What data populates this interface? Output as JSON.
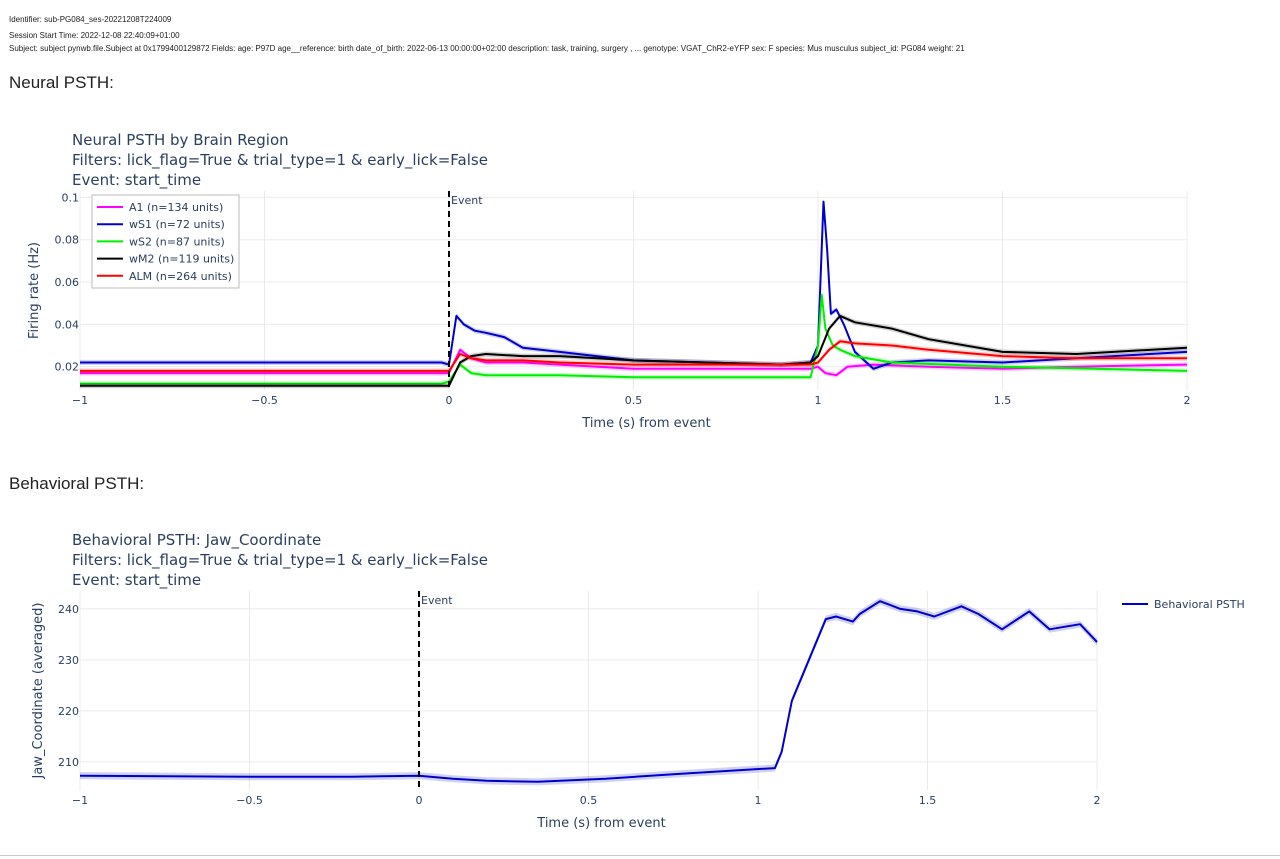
{
  "meta": {
    "identifier": "Identifier: sub-PG084_ses-20221208T224009",
    "session_start": "Session Start Time: 2022-12-08 22:40:09+01:00",
    "subject": "Subject: subject pynwb.file.Subject at 0x1799400129872 Fields: age: P97D age__reference: birth date_of_birth: 2022-06-13 00:00:00+02:00 description: task, training, surgery , ... genotype: VGAT_ChR2-eYFP sex: F species: Mus musculus subject_id: PG084 weight: 21"
  },
  "sections": {
    "neural_heading": "Neural PSTH:",
    "behavioral_heading": "Behavioral PSTH:"
  },
  "chart_data": [
    {
      "type": "line",
      "title": [
        "Neural PSTH by Brain Region",
        "Filters: lick_flag=True & trial_type=1 & early_lick=False",
        "Event: start_time"
      ],
      "xlabel": "Time (s) from event",
      "ylabel": "Firing rate (Hz)",
      "xlim": [
        -1,
        2
      ],
      "ylim": [
        0.009,
        0.103
      ],
      "xticks": [
        -1,
        -0.5,
        0,
        0.5,
        1,
        1.5,
        2
      ],
      "xtick_labels": [
        "−1",
        "−0.5",
        "0",
        "0.5",
        "1",
        "1.5",
        "2"
      ],
      "yticks": [
        0.02,
        0.04,
        0.06,
        0.08,
        0.1
      ],
      "ytick_labels": [
        "0.02",
        "0.04",
        "0.06",
        "0.08",
        "0.1"
      ],
      "grid": true,
      "legend": "top-left",
      "event_line": {
        "x": 0,
        "label": "Event"
      },
      "series": [
        {
          "name": "A1 (n=134 units)",
          "color": "#ff00ff",
          "x": [
            -1,
            -0.5,
            -0.02,
            0,
            0.03,
            0.06,
            0.1,
            0.2,
            0.3,
            0.5,
            0.7,
            0.9,
            0.98,
            1.0,
            1.02,
            1.05,
            1.08,
            1.15,
            1.3,
            1.5,
            1.7,
            2
          ],
          "values": [
            0.017,
            0.017,
            0.017,
            0.017,
            0.028,
            0.024,
            0.022,
            0.022,
            0.021,
            0.019,
            0.019,
            0.019,
            0.019,
            0.02,
            0.017,
            0.016,
            0.02,
            0.021,
            0.02,
            0.019,
            0.02,
            0.021
          ]
        },
        {
          "name": "wS1 (n=72 units)",
          "color": "#0000cc",
          "x": [
            -1,
            -0.5,
            -0.02,
            0,
            0.02,
            0.04,
            0.07,
            0.1,
            0.15,
            0.2,
            0.3,
            0.5,
            0.7,
            0.9,
            0.98,
            1.0,
            1.015,
            1.025,
            1.035,
            1.05,
            1.07,
            1.1,
            1.15,
            1.2,
            1.3,
            1.5,
            1.7,
            2
          ],
          "values": [
            0.022,
            0.022,
            0.022,
            0.021,
            0.044,
            0.04,
            0.037,
            0.036,
            0.034,
            0.029,
            0.027,
            0.023,
            0.022,
            0.021,
            0.022,
            0.03,
            0.098,
            0.075,
            0.045,
            0.047,
            0.04,
            0.027,
            0.019,
            0.022,
            0.023,
            0.022,
            0.024,
            0.027
          ]
        },
        {
          "name": "wS2 (n=87 units)",
          "color": "#00ee00",
          "x": [
            -1,
            -0.5,
            -0.02,
            0,
            0.03,
            0.06,
            0.1,
            0.3,
            0.5,
            0.7,
            0.9,
            0.98,
            1.0,
            1.01,
            1.02,
            1.04,
            1.06,
            1.1,
            1.2,
            1.5,
            2
          ],
          "values": [
            0.012,
            0.012,
            0.012,
            0.013,
            0.021,
            0.017,
            0.016,
            0.016,
            0.015,
            0.015,
            0.015,
            0.015,
            0.03,
            0.054,
            0.038,
            0.03,
            0.028,
            0.025,
            0.022,
            0.02,
            0.018
          ]
        },
        {
          "name": "wM2 (n=119 units)",
          "color": "#000000",
          "x": [
            -1,
            -0.5,
            -0.02,
            0,
            0.03,
            0.06,
            0.1,
            0.2,
            0.3,
            0.5,
            0.7,
            0.9,
            0.98,
            1.0,
            1.03,
            1.06,
            1.1,
            1.2,
            1.3,
            1.5,
            1.7,
            2
          ],
          "values": [
            0.011,
            0.011,
            0.011,
            0.011,
            0.022,
            0.025,
            0.026,
            0.025,
            0.025,
            0.023,
            0.022,
            0.021,
            0.022,
            0.025,
            0.038,
            0.044,
            0.041,
            0.038,
            0.033,
            0.027,
            0.026,
            0.029
          ]
        },
        {
          "name": "ALM (n=264 units)",
          "color": "#ff0000",
          "x": [
            -1,
            -0.5,
            -0.02,
            0,
            0.03,
            0.06,
            0.1,
            0.2,
            0.3,
            0.5,
            0.7,
            0.9,
            0.98,
            1.0,
            1.03,
            1.06,
            1.1,
            1.2,
            1.3,
            1.5,
            1.7,
            2
          ],
          "values": [
            0.018,
            0.018,
            0.018,
            0.018,
            0.026,
            0.024,
            0.023,
            0.023,
            0.022,
            0.021,
            0.021,
            0.021,
            0.021,
            0.022,
            0.028,
            0.032,
            0.031,
            0.03,
            0.028,
            0.025,
            0.024,
            0.024
          ]
        }
      ]
    },
    {
      "type": "line",
      "title": [
        "Behavioral PSTH: Jaw_Coordinate",
        "Filters: lick_flag=True & trial_type=1 & early_lick=False",
        "Event: start_time"
      ],
      "xlabel": "Time (s) from event",
      "ylabel": "Jaw_Coordinate (averaged)",
      "xlim": [
        -1,
        2
      ],
      "ylim": [
        204.5,
        243.5
      ],
      "xticks": [
        -1,
        -0.5,
        0,
        0.5,
        1,
        1.5,
        2
      ],
      "xtick_labels": [
        "−1",
        "−0.5",
        "0",
        "0.5",
        "1",
        "1.5",
        "2"
      ],
      "yticks": [
        210,
        220,
        230,
        240
      ],
      "ytick_labels": [
        "210",
        "220",
        "230",
        "240"
      ],
      "grid": true,
      "legend": "top-right",
      "event_line": {
        "x": 0,
        "label": "Event"
      },
      "series": [
        {
          "name": "Behavioral PSTH",
          "color": "#0000cc",
          "x": [
            -1,
            -0.5,
            -0.2,
            0,
            0.1,
            0.2,
            0.35,
            0.55,
            0.75,
            0.9,
            1.05,
            1.07,
            1.1,
            1.15,
            1.2,
            1.23,
            1.28,
            1.3,
            1.36,
            1.42,
            1.47,
            1.52,
            1.6,
            1.65,
            1.72,
            1.8,
            1.86,
            1.95,
            2
          ],
          "values": [
            207.3,
            207.1,
            207.1,
            207.3,
            206.7,
            206.3,
            206.1,
            206.7,
            207.6,
            208.2,
            208.8,
            212,
            222,
            230,
            238,
            238.5,
            237.5,
            239,
            241.5,
            240,
            239.5,
            238.5,
            240.5,
            239,
            236,
            239.5,
            236,
            237,
            233.5
          ]
        }
      ]
    }
  ]
}
